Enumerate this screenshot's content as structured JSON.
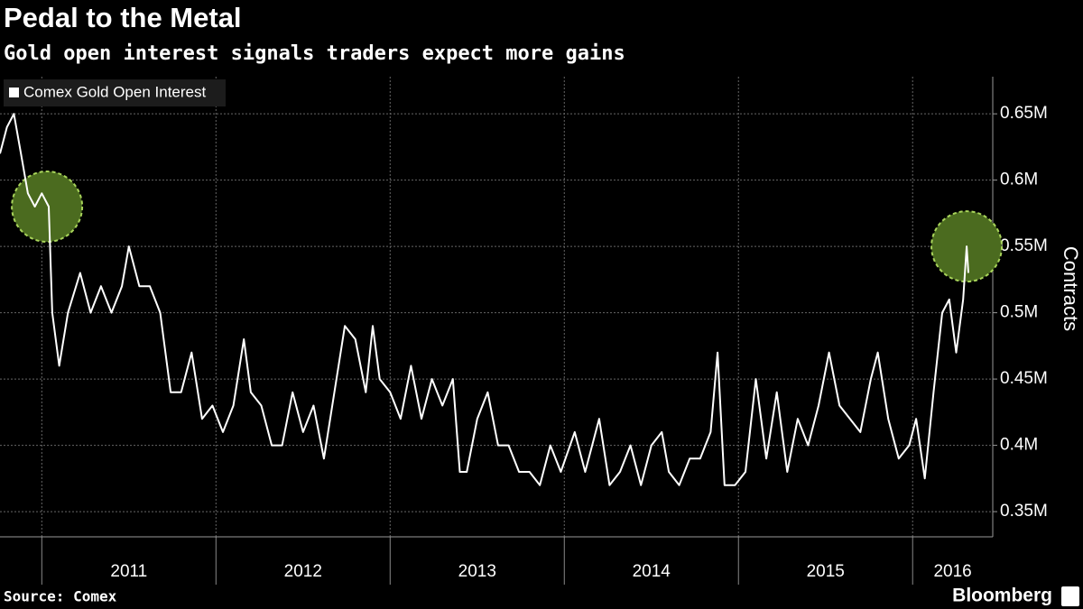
{
  "chart_data": {
    "type": "line",
    "title": "Pedal to the Metal",
    "subtitle": "Gold open interest signals traders expect more gains",
    "y_label": "Contracts",
    "source": "Source: Comex",
    "brand": "Bloomberg",
    "series": [
      {
        "name": "Comex Gold Open Interest",
        "color": "#ffffff",
        "x": [
          2010.76,
          2010.8,
          2010.84,
          2010.88,
          2010.92,
          2010.96,
          2011.0,
          2011.04,
          2011.06,
          2011.1,
          2011.15,
          2011.22,
          2011.28,
          2011.34,
          2011.4,
          2011.46,
          2011.5,
          2011.56,
          2011.62,
          2011.68,
          2011.74,
          2011.8,
          2011.86,
          2011.92,
          2011.98,
          2012.04,
          2012.1,
          2012.16,
          2012.2,
          2012.26,
          2012.32,
          2012.38,
          2012.44,
          2012.5,
          2012.56,
          2012.62,
          2012.68,
          2012.74,
          2012.8,
          2012.86,
          2012.9,
          2012.94,
          2013.0,
          2013.06,
          2013.12,
          2013.18,
          2013.24,
          2013.3,
          2013.36,
          2013.4,
          2013.44,
          2013.5,
          2013.56,
          2013.62,
          2013.68,
          2013.74,
          2013.8,
          2013.86,
          2013.92,
          2013.98,
          2014.06,
          2014.12,
          2014.2,
          2014.26,
          2014.32,
          2014.38,
          2014.44,
          2014.5,
          2014.56,
          2014.6,
          2014.66,
          2014.72,
          2014.78,
          2014.84,
          2014.88,
          2014.92,
          2014.98,
          2015.04,
          2015.1,
          2015.16,
          2015.22,
          2015.28,
          2015.34,
          2015.4,
          2015.46,
          2015.52,
          2015.58,
          2015.64,
          2015.7,
          2015.76,
          2015.8,
          2015.86,
          2015.92,
          2015.98,
          2016.02,
          2016.07,
          2016.12,
          2016.17,
          2016.21,
          2016.25,
          2016.29,
          2016.31,
          2016.32
        ],
        "values": [
          0.62,
          0.64,
          0.65,
          0.62,
          0.59,
          0.58,
          0.59,
          0.58,
          0.5,
          0.46,
          0.5,
          0.53,
          0.5,
          0.52,
          0.5,
          0.52,
          0.55,
          0.52,
          0.52,
          0.5,
          0.44,
          0.44,
          0.47,
          0.42,
          0.43,
          0.41,
          0.43,
          0.48,
          0.44,
          0.43,
          0.4,
          0.4,
          0.44,
          0.41,
          0.43,
          0.39,
          0.44,
          0.49,
          0.48,
          0.44,
          0.49,
          0.45,
          0.44,
          0.42,
          0.46,
          0.42,
          0.45,
          0.43,
          0.45,
          0.38,
          0.38,
          0.42,
          0.44,
          0.4,
          0.4,
          0.38,
          0.38,
          0.37,
          0.4,
          0.38,
          0.41,
          0.38,
          0.42,
          0.37,
          0.38,
          0.4,
          0.37,
          0.4,
          0.41,
          0.38,
          0.37,
          0.39,
          0.39,
          0.41,
          0.47,
          0.37,
          0.37,
          0.38,
          0.45,
          0.39,
          0.44,
          0.38,
          0.42,
          0.4,
          0.43,
          0.47,
          0.43,
          0.42,
          0.41,
          0.45,
          0.47,
          0.42,
          0.39,
          0.4,
          0.42,
          0.375,
          0.44,
          0.5,
          0.51,
          0.47,
          0.51,
          0.55,
          0.53
        ]
      }
    ],
    "highlights": [
      {
        "x": 2011.03,
        "y": 0.58
      },
      {
        "x": 2016.31,
        "y": 0.55
      }
    ],
    "highlight_color": "#4b6b1f",
    "xlim": [
      2010.76,
      2016.46
    ],
    "xticks": [
      {
        "value": 2011,
        "label": "2011"
      },
      {
        "value": 2012,
        "label": "2012"
      },
      {
        "value": 2013,
        "label": "2013"
      },
      {
        "value": 2014,
        "label": "2014"
      },
      {
        "value": 2015,
        "label": "2015"
      },
      {
        "value": 2016,
        "label": "2016"
      }
    ],
    "ylim": [
      0.331,
      0.678
    ],
    "yticks": [
      {
        "value": 0.35,
        "label": "0.35M"
      },
      {
        "value": 0.4,
        "label": "0.4M"
      },
      {
        "value": 0.45,
        "label": "0.45M"
      },
      {
        "value": 0.5,
        "label": "0.5M"
      },
      {
        "value": 0.55,
        "label": "0.55M"
      },
      {
        "value": 0.6,
        "label": "0.6M"
      },
      {
        "value": 0.65,
        "label": "0.65M"
      }
    ],
    "grid": true
  }
}
